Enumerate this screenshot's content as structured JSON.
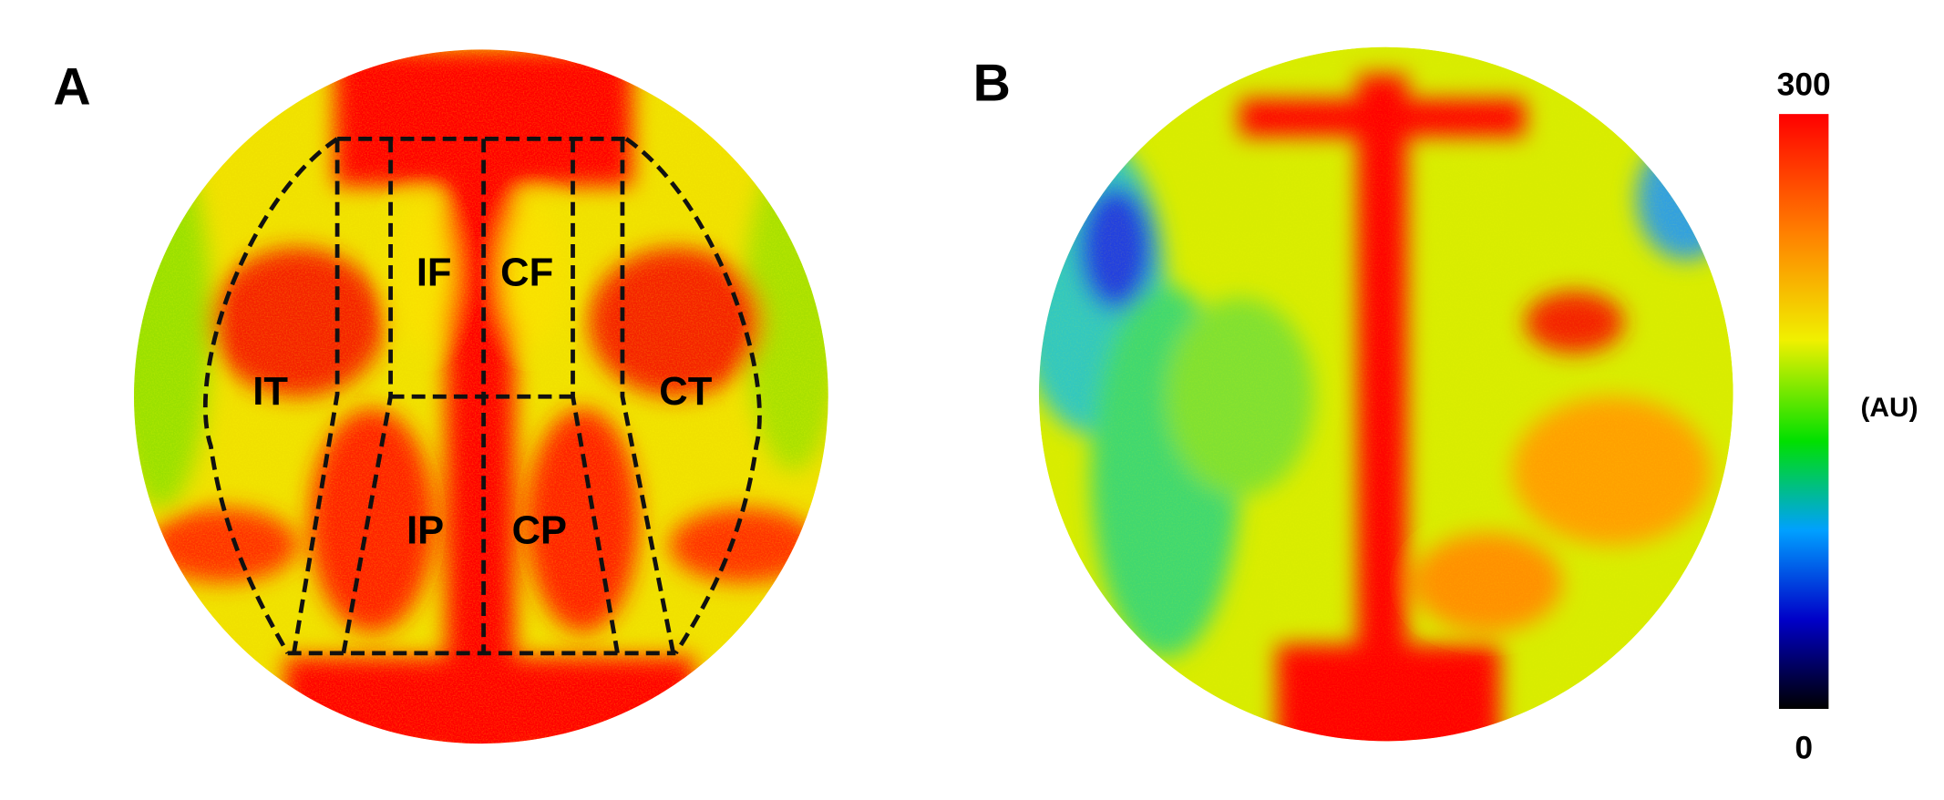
{
  "panels": [
    {
      "label": "A",
      "regions": [
        "IF",
        "CF",
        "IT",
        "CT",
        "IP",
        "CP"
      ]
    },
    {
      "label": "B"
    }
  ],
  "colorbar": {
    "max": 300,
    "min": 0,
    "unit": "(AU)"
  }
}
